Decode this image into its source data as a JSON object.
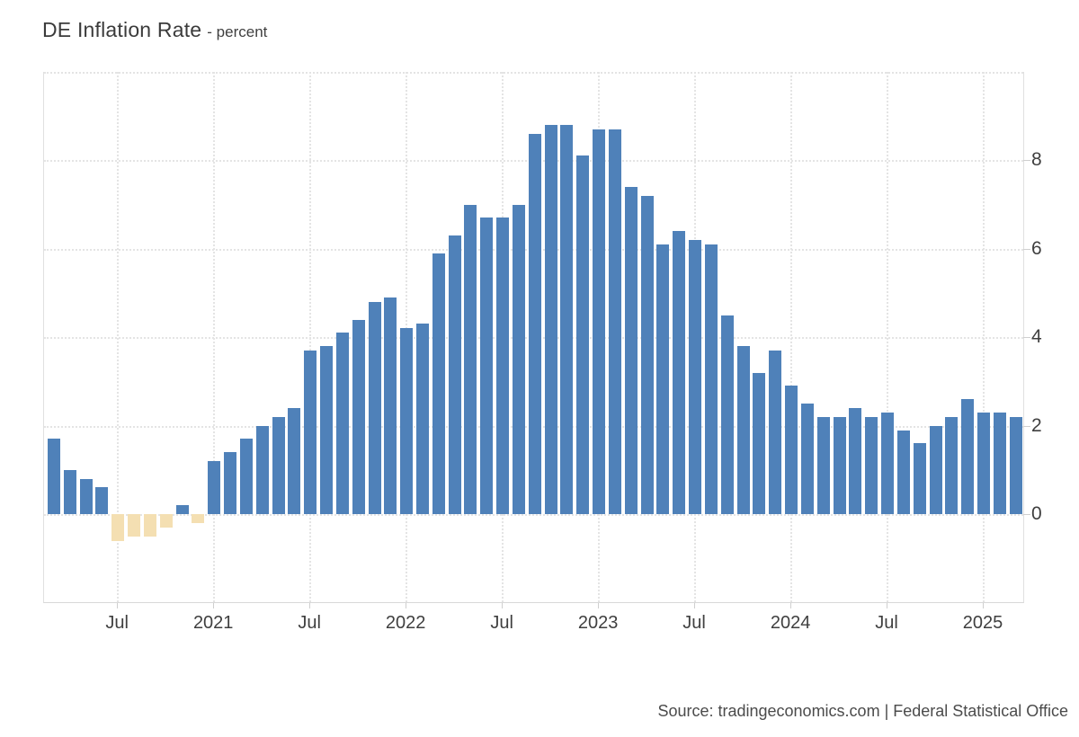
{
  "header": {
    "title": "DE Inflation Rate",
    "subtitle": "- percent"
  },
  "footer": {
    "source": "Source: tradingeconomics.com | Federal Statistical Office"
  },
  "chart_data": {
    "type": "bar",
    "title": "DE Inflation Rate",
    "ylabel": "percent",
    "xlabel": "",
    "grid": true,
    "legend": "none",
    "ylim": [
      -2,
      10
    ],
    "yticks": [
      8,
      6,
      4,
      2,
      0
    ],
    "ygrid_values": [
      10,
      8,
      6,
      4,
      2,
      0
    ],
    "bar_color_positive": "#4f81b9",
    "bar_color_negative": "#f4dfb2",
    "x": [
      "2020-03",
      "2020-04",
      "2020-05",
      "2020-06",
      "2020-07",
      "2020-08",
      "2020-09",
      "2020-10",
      "2020-11",
      "2020-12",
      "2021-01",
      "2021-02",
      "2021-03",
      "2021-04",
      "2021-05",
      "2021-06",
      "2021-07",
      "2021-08",
      "2021-09",
      "2021-10",
      "2021-11",
      "2021-12",
      "2022-01",
      "2022-02",
      "2022-03",
      "2022-04",
      "2022-05",
      "2022-06",
      "2022-07",
      "2022-08",
      "2022-09",
      "2022-10",
      "2022-11",
      "2022-12",
      "2023-01",
      "2023-02",
      "2023-03",
      "2023-04",
      "2023-05",
      "2023-06",
      "2023-07",
      "2023-08",
      "2023-09",
      "2023-10",
      "2023-11",
      "2023-12",
      "2024-01",
      "2024-02",
      "2024-03",
      "2024-04",
      "2024-05",
      "2024-06",
      "2024-07",
      "2024-08",
      "2024-09",
      "2024-10",
      "2024-11",
      "2024-12",
      "2025-01",
      "2025-02",
      "2025-03"
    ],
    "values": [
      1.7,
      1.0,
      0.8,
      0.6,
      -0.6,
      -0.5,
      -0.5,
      -0.3,
      0.2,
      -0.2,
      1.2,
      1.4,
      1.7,
      2.0,
      2.2,
      2.4,
      3.7,
      3.8,
      4.1,
      4.4,
      4.8,
      4.9,
      4.2,
      4.3,
      5.9,
      6.3,
      7.0,
      6.7,
      6.7,
      7.0,
      8.6,
      8.8,
      8.8,
      8.1,
      8.7,
      8.7,
      7.4,
      7.2,
      6.1,
      6.4,
      6.2,
      6.1,
      4.5,
      3.8,
      3.2,
      3.7,
      2.9,
      2.5,
      2.2,
      2.2,
      2.4,
      2.2,
      2.3,
      1.9,
      1.6,
      2.0,
      2.2,
      2.6,
      2.3,
      2.3,
      2.2
    ],
    "xticks": [
      {
        "month_index": 4,
        "label": "Jul"
      },
      {
        "month_index": 10,
        "label": "2021"
      },
      {
        "month_index": 16,
        "label": "Jul"
      },
      {
        "month_index": 22,
        "label": "2022"
      },
      {
        "month_index": 28,
        "label": "Jul"
      },
      {
        "month_index": 34,
        "label": "2023"
      },
      {
        "month_index": 40,
        "label": "Jul"
      },
      {
        "month_index": 46,
        "label": "2024"
      },
      {
        "month_index": 52,
        "label": "Jul"
      },
      {
        "month_index": 58,
        "label": "2025"
      }
    ]
  }
}
